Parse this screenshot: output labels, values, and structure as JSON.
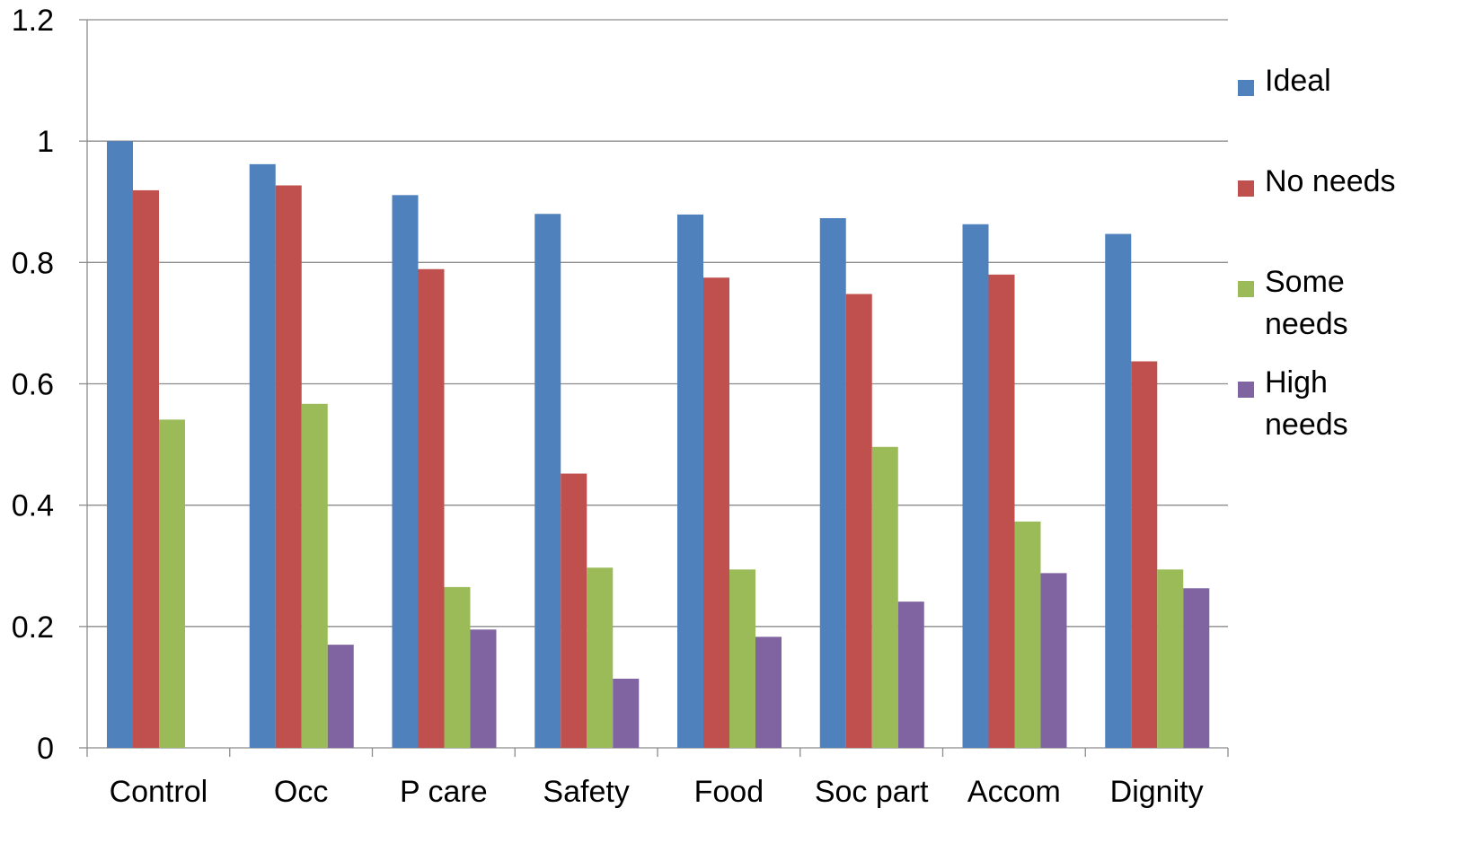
{
  "chart_data": {
    "type": "bar",
    "title": "",
    "xlabel": "",
    "ylabel": "",
    "categories": [
      "Control",
      "Occ",
      "P care",
      "Safety",
      "Food",
      "Soc part",
      "Accom",
      "Dignity"
    ],
    "ylim": [
      0,
      1.2
    ],
    "yticks": [
      0,
      0.2,
      0.4,
      0.6,
      0.8,
      1,
      1.2
    ],
    "ytick_labels": [
      "0",
      "0.2",
      "0.4",
      "0.6",
      "0.8",
      "1",
      "1.2"
    ],
    "grid": true,
    "legend_position": "right",
    "series": [
      {
        "name": "Ideal",
        "color": "#4F81BD",
        "values": [
          1.0,
          0.962,
          0.911,
          0.88,
          0.879,
          0.873,
          0.863,
          0.847
        ]
      },
      {
        "name": "No needs",
        "color": "#C0504D",
        "values": [
          0.919,
          0.927,
          0.789,
          0.452,
          0.775,
          0.748,
          0.78,
          0.637
        ]
      },
      {
        "name": "Some needs",
        "color": "#9BBB59",
        "values": [
          0.541,
          0.567,
          0.265,
          0.297,
          0.294,
          0.496,
          0.373,
          0.294
        ]
      },
      {
        "name": "High needs",
        "color": "#8064A2",
        "values": [
          null,
          0.17,
          0.195,
          0.114,
          0.183,
          0.241,
          0.288,
          0.263
        ]
      }
    ],
    "legend_lines": [
      [
        "Ideal"
      ],
      [
        "No needs"
      ],
      [
        "Some",
        "needs"
      ],
      [
        "High",
        "needs"
      ]
    ]
  }
}
